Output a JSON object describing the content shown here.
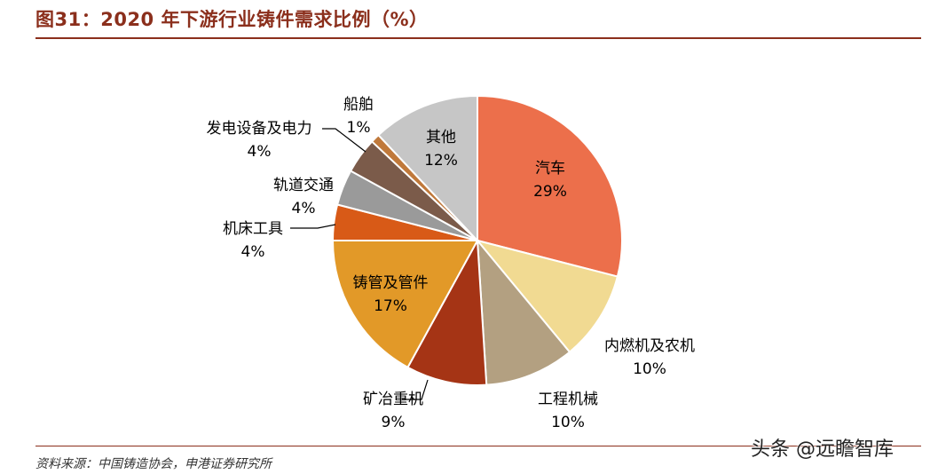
{
  "header": {
    "title": "图31：2020 年下游行业铸件需求比例（%）"
  },
  "footer": {
    "source": "资料来源：中国铸造协会，申港证券研究所"
  },
  "watermark": {
    "text": "头条 @远瞻智库"
  },
  "chart_data": {
    "type": "pie",
    "title": "",
    "slices": [
      {
        "name": "汽车",
        "value": 29,
        "value_label": "29%",
        "color": "#ec6f4b"
      },
      {
        "name": "内燃机及农机",
        "value": 10,
        "value_label": "10%",
        "color": "#f1da92"
      },
      {
        "name": "工程机械",
        "value": 10,
        "value_label": "10%",
        "color": "#b3a081"
      },
      {
        "name": "矿冶重机",
        "value": 9,
        "value_label": "9%",
        "color": "#a53415"
      },
      {
        "name": "铸管及管件",
        "value": 17,
        "value_label": "17%",
        "color": "#e29928"
      },
      {
        "name": "机床工具",
        "value": 4,
        "value_label": "4%",
        "color": "#d85a17"
      },
      {
        "name": "轨道交通",
        "value": 4,
        "value_label": "4%",
        "color": "#9a9a9a"
      },
      {
        "name": "发电设备及电力",
        "value": 4,
        "value_label": "4%",
        "color": "#7b5b4a"
      },
      {
        "name": "船舶",
        "value": 1,
        "value_label": "1%",
        "color": "#c0793b"
      },
      {
        "name": "其他",
        "value": 12,
        "value_label": "12%",
        "color": "#c6c6c6"
      }
    ]
  }
}
